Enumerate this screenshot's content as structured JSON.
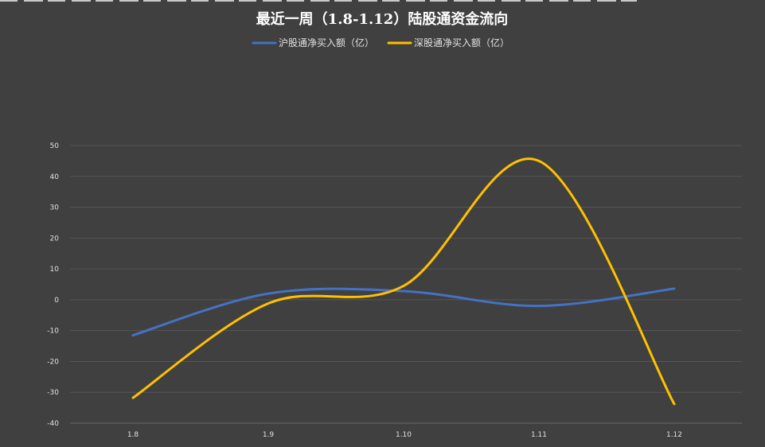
{
  "chart_data": {
    "type": "line",
    "title": "最近一周（1.8-1.12）陆股通资金流向",
    "xlabel": "",
    "ylabel": "",
    "categories": [
      "1.8",
      "1.9",
      "1.10",
      "1.11",
      "1.12"
    ],
    "ylim": [
      -40,
      50
    ],
    "yticks": [
      50,
      40,
      30,
      20,
      10,
      0,
      -10,
      -20,
      -30,
      -40
    ],
    "grid": true,
    "legend_position": "top",
    "series": [
      {
        "name": "沪股通净买入额（亿）",
        "color": "#4472c4",
        "values": [
          -11.5,
          2.0,
          2.8,
          -2.0,
          3.6
        ]
      },
      {
        "name": "深股通净买入额（亿）",
        "color": "#ffc000",
        "values": [
          -31.8,
          -1.2,
          4.5,
          45.0,
          -33.8
        ]
      }
    ]
  }
}
